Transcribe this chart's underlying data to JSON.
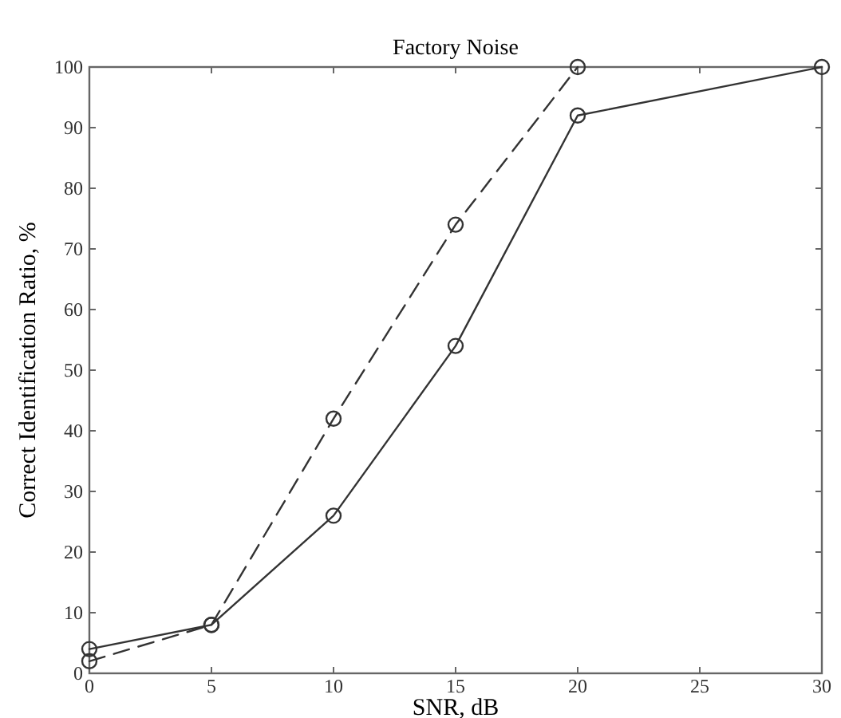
{
  "chart_data": {
    "type": "line",
    "title": "Factory Noise",
    "xlabel": "SNR, dB",
    "ylabel": "Correct Identification Ratio, %",
    "xlim": [
      0,
      30
    ],
    "ylim": [
      0,
      100
    ],
    "xticks": [
      0,
      5,
      10,
      15,
      20,
      25,
      30
    ],
    "yticks": [
      0,
      10,
      20,
      30,
      40,
      50,
      60,
      70,
      80,
      90,
      100
    ],
    "grid": false,
    "marker": "circle",
    "series": [
      {
        "color": "#333333",
        "line_style": "solid",
        "x": [
          0,
          5,
          10,
          15,
          20,
          30
        ],
        "values": [
          4,
          8,
          26,
          54,
          92,
          100
        ]
      },
      {
        "color": "#333333",
        "line_style": "dashed",
        "x": [
          0,
          5,
          10,
          15,
          20
        ],
        "values": [
          2,
          8,
          42,
          74,
          100
        ]
      }
    ]
  }
}
